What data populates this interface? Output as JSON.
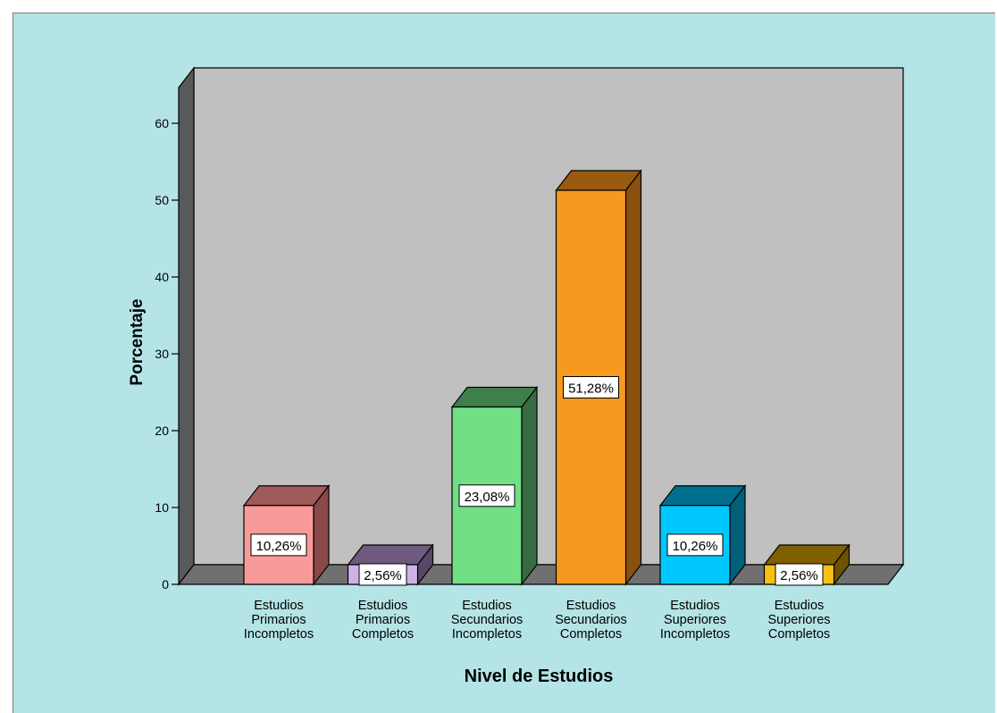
{
  "chart_data": {
    "type": "bar",
    "style": "3d",
    "categories": [
      [
        "Estudios",
        "Primarios",
        "Incompletos"
      ],
      [
        "Estudios",
        "Primarios",
        "Completos"
      ],
      [
        "Estudios",
        "Secundarios",
        "Incompletos"
      ],
      [
        "Estudios",
        "Secundarios",
        "Completos"
      ],
      [
        "Estudios",
        "Superiores",
        "Incompletos"
      ],
      [
        "Estudios",
        "Superiores",
        "Completos"
      ]
    ],
    "values": [
      10.26,
      2.56,
      23.08,
      51.28,
      10.26,
      2.56
    ],
    "data_labels": [
      "10,26%",
      "2,56%",
      "23,08%",
      "51,28%",
      "10,26%",
      "2,56%"
    ],
    "colors": [
      {
        "front": "#f99a9a",
        "top": "#a05a5a",
        "side": "#8a4848"
      },
      {
        "front": "#cdb3e6",
        "top": "#6e5a7e",
        "side": "#5a4868"
      },
      {
        "front": "#72de86",
        "top": "#3f7f4c",
        "side": "#366c40"
      },
      {
        "front": "#f5991f",
        "top": "#9a5a10",
        "side": "#8a5010"
      },
      {
        "front": "#00c8ff",
        "top": "#006f8e",
        "side": "#005f79"
      },
      {
        "front": "#f7c016",
        "top": "#7f5f00",
        "side": "#6e5200"
      }
    ],
    "xlabel": "Nivel de Estudios",
    "ylabel": "Porcentaje",
    "ylim": [
      0,
      60
    ],
    "yticks": [
      0,
      10,
      20,
      30,
      40,
      50,
      60
    ],
    "grid": false,
    "background": "#b4e4e6",
    "wall_color": "#c0c0c0",
    "floor_color": "#707070"
  }
}
